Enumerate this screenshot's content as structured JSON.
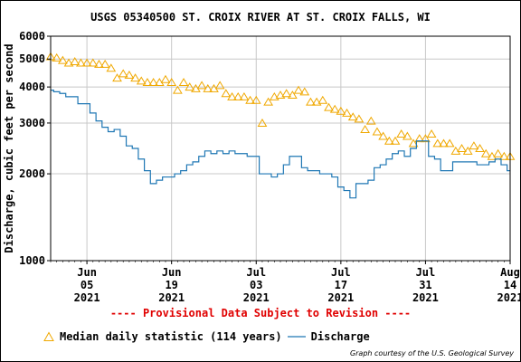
{
  "chart_data": {
    "type": "line",
    "title": "USGS 05340500 ST. CROIX RIVER AT ST. CROIX FALLS, WI",
    "ylabel": "Discharge, cubic feet per second",
    "xlabel": "",
    "y_scale": "log",
    "ylim": [
      1000,
      6000
    ],
    "xlim": [
      "2021-05-30",
      "2021-08-14"
    ],
    "y_ticks": [
      {
        "value": 1000,
        "label": "1000"
      },
      {
        "value": 2000,
        "label": "2000"
      },
      {
        "value": 3000,
        "label": "3000"
      },
      {
        "value": 4000,
        "label": "4000"
      },
      {
        "value": 5000,
        "label": "5000"
      },
      {
        "value": 6000,
        "label": "6000"
      }
    ],
    "x_ticks": [
      {
        "date": "2021-06-05",
        "lines": [
          "Jun",
          "05",
          "2021"
        ]
      },
      {
        "date": "2021-06-19",
        "lines": [
          "Jun",
          "19",
          "2021"
        ]
      },
      {
        "date": "2021-07-03",
        "lines": [
          "Jul",
          "03",
          "2021"
        ]
      },
      {
        "date": "2021-07-17",
        "lines": [
          "Jul",
          "17",
          "2021"
        ]
      },
      {
        "date": "2021-07-31",
        "lines": [
          "Jul",
          "31",
          "2021"
        ]
      },
      {
        "date": "2021-08-14",
        "lines": [
          "Aug",
          "14",
          "2021"
        ]
      }
    ],
    "grid": true,
    "legend_position": "bottom",
    "series": [
      {
        "name": "Median daily statistic (114 years)",
        "style": "triangle-markers",
        "color": "#f0a800",
        "points": [
          [
            "2021-05-30",
            5100
          ],
          [
            "2021-05-31",
            5050
          ],
          [
            "2021-06-01",
            4950
          ],
          [
            "2021-06-02",
            4850
          ],
          [
            "2021-06-03",
            4900
          ],
          [
            "2021-06-04",
            4850
          ],
          [
            "2021-06-05",
            4850
          ],
          [
            "2021-06-06",
            4850
          ],
          [
            "2021-06-07",
            4800
          ],
          [
            "2021-06-08",
            4800
          ],
          [
            "2021-06-09",
            4650
          ],
          [
            "2021-06-10",
            4300
          ],
          [
            "2021-06-11",
            4450
          ],
          [
            "2021-06-12",
            4400
          ],
          [
            "2021-06-13",
            4300
          ],
          [
            "2021-06-14",
            4200
          ],
          [
            "2021-06-15",
            4150
          ],
          [
            "2021-06-16",
            4150
          ],
          [
            "2021-06-17",
            4150
          ],
          [
            "2021-06-18",
            4250
          ],
          [
            "2021-06-19",
            4150
          ],
          [
            "2021-06-20",
            3900
          ],
          [
            "2021-06-21",
            4150
          ],
          [
            "2021-06-22",
            4000
          ],
          [
            "2021-06-23",
            3950
          ],
          [
            "2021-06-24",
            4050
          ],
          [
            "2021-06-25",
            3950
          ],
          [
            "2021-06-26",
            3950
          ],
          [
            "2021-06-27",
            4050
          ],
          [
            "2021-06-28",
            3800
          ],
          [
            "2021-06-29",
            3700
          ],
          [
            "2021-06-30",
            3700
          ],
          [
            "2021-07-01",
            3700
          ],
          [
            "2021-07-02",
            3600
          ],
          [
            "2021-07-03",
            3600
          ],
          [
            "2021-07-04",
            3000
          ],
          [
            "2021-07-05",
            3550
          ],
          [
            "2021-07-06",
            3700
          ],
          [
            "2021-07-07",
            3750
          ],
          [
            "2021-07-08",
            3800
          ],
          [
            "2021-07-09",
            3750
          ],
          [
            "2021-07-10",
            3900
          ],
          [
            "2021-07-11",
            3850
          ],
          [
            "2021-07-12",
            3550
          ],
          [
            "2021-07-13",
            3550
          ],
          [
            "2021-07-14",
            3600
          ],
          [
            "2021-07-15",
            3400
          ],
          [
            "2021-07-16",
            3350
          ],
          [
            "2021-07-17",
            3300
          ],
          [
            "2021-07-18",
            3250
          ],
          [
            "2021-07-19",
            3150
          ],
          [
            "2021-07-20",
            3100
          ],
          [
            "2021-07-21",
            2850
          ],
          [
            "2021-07-22",
            3050
          ],
          [
            "2021-07-23",
            2800
          ],
          [
            "2021-07-24",
            2700
          ],
          [
            "2021-07-25",
            2600
          ],
          [
            "2021-07-26",
            2600
          ],
          [
            "2021-07-27",
            2750
          ],
          [
            "2021-07-28",
            2700
          ],
          [
            "2021-07-29",
            2550
          ],
          [
            "2021-07-30",
            2650
          ],
          [
            "2021-07-31",
            2650
          ],
          [
            "2021-08-01",
            2750
          ],
          [
            "2021-08-02",
            2550
          ],
          [
            "2021-08-03",
            2550
          ],
          [
            "2021-08-04",
            2550
          ],
          [
            "2021-08-05",
            2400
          ],
          [
            "2021-08-06",
            2450
          ],
          [
            "2021-08-07",
            2400
          ],
          [
            "2021-08-08",
            2500
          ],
          [
            "2021-08-09",
            2450
          ],
          [
            "2021-08-10",
            2350
          ],
          [
            "2021-08-11",
            2300
          ],
          [
            "2021-08-12",
            2350
          ],
          [
            "2021-08-13",
            2300
          ],
          [
            "2021-08-14",
            2300
          ]
        ]
      },
      {
        "name": "Discharge",
        "style": "line",
        "color": "#1f77b4",
        "points": [
          [
            "2021-05-30",
            3900
          ],
          [
            "2021-05-31",
            3850
          ],
          [
            "2021-06-01",
            3800
          ],
          [
            "2021-06-02",
            3700
          ],
          [
            "2021-06-03",
            3700
          ],
          [
            "2021-06-04",
            3500
          ],
          [
            "2021-06-05",
            3500
          ],
          [
            "2021-06-06",
            3250
          ],
          [
            "2021-06-07",
            3050
          ],
          [
            "2021-06-08",
            2900
          ],
          [
            "2021-06-09",
            2800
          ],
          [
            "2021-06-10",
            2850
          ],
          [
            "2021-06-11",
            2700
          ],
          [
            "2021-06-12",
            2500
          ],
          [
            "2021-06-13",
            2450
          ],
          [
            "2021-06-14",
            2250
          ],
          [
            "2021-06-15",
            2050
          ],
          [
            "2021-06-16",
            1850
          ],
          [
            "2021-06-17",
            1900
          ],
          [
            "2021-06-18",
            1950
          ],
          [
            "2021-06-19",
            1950
          ],
          [
            "2021-06-20",
            2000
          ],
          [
            "2021-06-21",
            2050
          ],
          [
            "2021-06-22",
            2150
          ],
          [
            "2021-06-23",
            2200
          ],
          [
            "2021-06-24",
            2300
          ],
          [
            "2021-06-25",
            2400
          ],
          [
            "2021-06-26",
            2350
          ],
          [
            "2021-06-27",
            2400
          ],
          [
            "2021-06-28",
            2350
          ],
          [
            "2021-06-29",
            2400
          ],
          [
            "2021-06-30",
            2350
          ],
          [
            "2021-07-01",
            2350
          ],
          [
            "2021-07-02",
            2300
          ],
          [
            "2021-07-03",
            2300
          ],
          [
            "2021-07-04",
            2000
          ],
          [
            "2021-07-05",
            2000
          ],
          [
            "2021-07-06",
            1950
          ],
          [
            "2021-07-07",
            2000
          ],
          [
            "2021-07-08",
            2150
          ],
          [
            "2021-07-09",
            2300
          ],
          [
            "2021-07-10",
            2300
          ],
          [
            "2021-07-11",
            2100
          ],
          [
            "2021-07-12",
            2050
          ],
          [
            "2021-07-13",
            2050
          ],
          [
            "2021-07-14",
            2000
          ],
          [
            "2021-07-15",
            2000
          ],
          [
            "2021-07-16",
            1950
          ],
          [
            "2021-07-17",
            1800
          ],
          [
            "2021-07-18",
            1750
          ],
          [
            "2021-07-19",
            1650
          ],
          [
            "2021-07-20",
            1850
          ],
          [
            "2021-07-21",
            1850
          ],
          [
            "2021-07-22",
            1900
          ],
          [
            "2021-07-23",
            2100
          ],
          [
            "2021-07-24",
            2150
          ],
          [
            "2021-07-25",
            2250
          ],
          [
            "2021-07-26",
            2350
          ],
          [
            "2021-07-27",
            2400
          ],
          [
            "2021-07-28",
            2300
          ],
          [
            "2021-07-29",
            2450
          ],
          [
            "2021-07-30",
            2600
          ],
          [
            "2021-07-31",
            2600
          ],
          [
            "2021-08-01",
            2300
          ],
          [
            "2021-08-02",
            2250
          ],
          [
            "2021-08-03",
            2050
          ],
          [
            "2021-08-04",
            2050
          ],
          [
            "2021-08-05",
            2200
          ],
          [
            "2021-08-06",
            2200
          ],
          [
            "2021-08-07",
            2200
          ],
          [
            "2021-08-08",
            2200
          ],
          [
            "2021-08-09",
            2150
          ],
          [
            "2021-08-10",
            2150
          ],
          [
            "2021-08-11",
            2200
          ],
          [
            "2021-08-12",
            2250
          ],
          [
            "2021-08-13",
            2150
          ],
          [
            "2021-08-14",
            2050
          ]
        ]
      }
    ]
  },
  "notice": "---- Provisional Data Subject to Revision ----",
  "legend": {
    "median_label": "Median daily statistic (114 years)",
    "discharge_label": "Discharge"
  },
  "credit": "Graph courtesy of the U.S. Geological Survey",
  "colors": {
    "median": "#f0a800",
    "discharge": "#1f77b4",
    "grid": "#c8c8c8",
    "notice": "#e00000"
  }
}
